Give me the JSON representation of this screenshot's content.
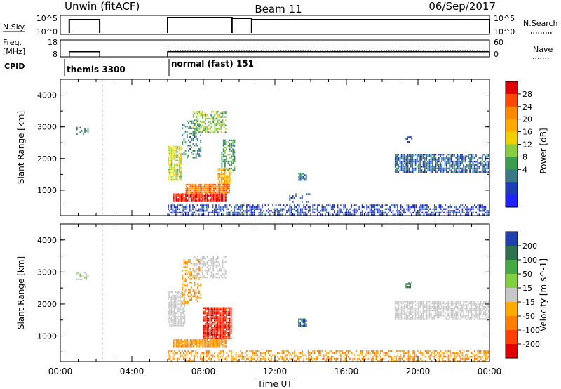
{
  "header": {
    "title_left": "Unwin (fitACF)",
    "title_center": "Beam 11",
    "title_right": "06/Sep/2017"
  },
  "nsky": {
    "label": "N.Sky",
    "tick_top": "10^5",
    "tick_bottom": "10^0",
    "right_label": "N.Search",
    "right_tick_top": "10^5",
    "right_tick_bottom": "10^0"
  },
  "freq": {
    "label_line1": "Freq.",
    "label_line2": "[MHz]",
    "tick_top": "18",
    "tick_bottom": "8",
    "right_label": "Nave",
    "right_tick_top": "60",
    "right_tick_bottom": "0"
  },
  "cpid": {
    "label": "CPID",
    "modes": [
      "themis 3300",
      "normal (fast) 151"
    ]
  },
  "time_axis": {
    "title": "Time UT",
    "ticks": [
      "00:00",
      "04:00",
      "08:00",
      "12:00",
      "16:00",
      "20:00",
      "00:00"
    ],
    "tick_hours": [
      0,
      4,
      8,
      12,
      16,
      20,
      24
    ]
  },
  "power_panel": {
    "ylabel": "Slant Range [km]",
    "yticks": [
      1000,
      2000,
      3000,
      4000
    ],
    "cbar_label": "Power [dB]",
    "cbar_ticks": [
      "28",
      "24",
      "20",
      "16",
      "12",
      "8",
      "4"
    ],
    "cbar_colors": [
      "#e00000",
      "#ff4800",
      "#ff8800",
      "#ffaa00",
      "#f0d000",
      "#8ccc40",
      "#3c9c50",
      "#3a7a88",
      "#1e3cb4",
      "#2222ff"
    ]
  },
  "velocity_panel": {
    "ylabel": "Slant Range [km]",
    "yticks": [
      1000,
      2000,
      3000,
      4000
    ],
    "cbar_label": "Velocity [m s^-1]",
    "cbar_ticks": [
      "200",
      "100",
      "50",
      "15",
      "-15",
      "-50",
      "-100",
      "-200"
    ],
    "cbar_colors": [
      "#2040b0",
      "#2e7050",
      "#44aa44",
      "#80d040",
      "#c8c8c8",
      "#ffaa00",
      "#ff8000",
      "#ff4000",
      "#e00000"
    ]
  },
  "chart_data": {
    "type": "heatmap",
    "x_unit": "hours UT",
    "xlim": [
      0,
      24
    ],
    "ylim": [
      200,
      4500
    ],
    "nsky_segments": [
      [
        0.5,
        2.2
      ],
      [
        6.0,
        9.6
      ],
      [
        9.6,
        10.7
      ],
      [
        10.7,
        24.0
      ]
    ],
    "freq_segments": [
      [
        0.5,
        2.2,
        11
      ],
      [
        6.0,
        24.0,
        11
      ]
    ],
    "nave_segments": [
      [
        0.5,
        2.2,
        18
      ],
      [
        6.0,
        24.0,
        22
      ]
    ],
    "cpid_switch_hours": [
      0.5,
      6.0
    ],
    "power_regions": [
      {
        "x": [
          0.9,
          1.6
        ],
        "y": [
          2750,
          3000
        ],
        "v": 10,
        "density": 0.4
      },
      {
        "x": [
          6.3,
          9.3
        ],
        "y": [
          650,
          900
        ],
        "v": 28,
        "density": 0.95
      },
      {
        "x": [
          7.0,
          9.5
        ],
        "y": [
          900,
          1200
        ],
        "v": 24,
        "density": 0.9
      },
      {
        "x": [
          8.8,
          9.6
        ],
        "y": [
          1200,
          1700
        ],
        "v": 20,
        "density": 0.8
      },
      {
        "x": [
          6.0,
          6.8
        ],
        "y": [
          1300,
          2400
        ],
        "v": 16,
        "density": 0.8
      },
      {
        "x": [
          6.8,
          7.9
        ],
        "y": [
          2000,
          3200
        ],
        "v": 10,
        "density": 0.35
      },
      {
        "x": [
          7.4,
          9.3
        ],
        "y": [
          2800,
          3500
        ],
        "v": 14,
        "density": 0.6
      },
      {
        "x": [
          9.0,
          9.8
        ],
        "y": [
          1600,
          2600
        ],
        "v": 12,
        "density": 0.55
      },
      {
        "x": [
          13.3,
          13.8
        ],
        "y": [
          1300,
          1550
        ],
        "v": 10,
        "density": 0.8
      },
      {
        "x": [
          12.8,
          14.0
        ],
        "y": [
          600,
          900
        ],
        "v": 6,
        "density": 0.3
      },
      {
        "x": [
          18.7,
          24.0
        ],
        "y": [
          1550,
          2150
        ],
        "v": 8,
        "density": 0.75
      },
      {
        "x": [
          19.3,
          19.7
        ],
        "y": [
          2500,
          2700
        ],
        "v": 6,
        "density": 0.6
      },
      {
        "x": [
          6.0,
          24.0
        ],
        "y": [
          200,
          550
        ],
        "v": 6,
        "density": 0.55
      }
    ],
    "velocity_regions": [
      {
        "x": [
          0.9,
          1.6
        ],
        "y": [
          2750,
          3000
        ],
        "v": 15,
        "density": 0.4
      },
      {
        "x": [
          6.3,
          9.3
        ],
        "y": [
          650,
          900
        ],
        "v": -50,
        "density": 0.9
      },
      {
        "x": [
          8.0,
          9.6
        ],
        "y": [
          900,
          1900
        ],
        "v": -200,
        "density": 0.9
      },
      {
        "x": [
          6.0,
          7.0
        ],
        "y": [
          1300,
          2400
        ],
        "v": 0,
        "density": 0.8
      },
      {
        "x": [
          6.8,
          7.9
        ],
        "y": [
          2000,
          3400
        ],
        "v": -50,
        "density": 0.4
      },
      {
        "x": [
          7.4,
          9.3
        ],
        "y": [
          2800,
          3500
        ],
        "v": 0,
        "density": 0.55
      },
      {
        "x": [
          13.3,
          13.8
        ],
        "y": [
          1300,
          1550
        ],
        "v": 200,
        "density": 0.8
      },
      {
        "x": [
          18.7,
          24.0
        ],
        "y": [
          1500,
          2100
        ],
        "v": 0,
        "density": 0.75
      },
      {
        "x": [
          19.3,
          19.7
        ],
        "y": [
          2500,
          2700
        ],
        "v": 100,
        "density": 0.6
      },
      {
        "x": [
          6.0,
          24.0
        ],
        "y": [
          200,
          550
        ],
        "v": -50,
        "density": 0.5
      }
    ]
  }
}
